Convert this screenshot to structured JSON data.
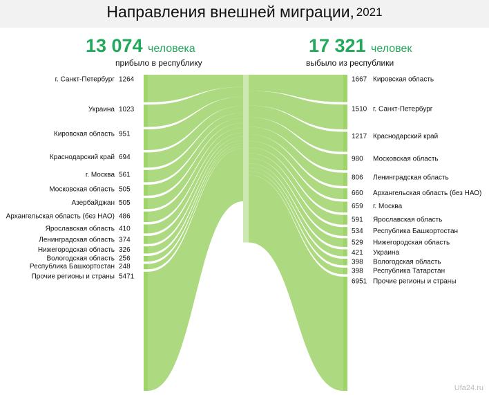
{
  "chart_data": {
    "type": "sankey",
    "title": "Направления внешней миграции,",
    "year": "2021",
    "color": "#9fd46b",
    "center_color": "#cde8b0",
    "accent_color": "#22a85a",
    "watermark": "Ufa24.ru",
    "inflow": {
      "total": 13074,
      "total_label": "13 074",
      "unit": "человека",
      "caption": "прибыло в республику",
      "categories": [
        "г. Санкт-Петербург",
        "Украина",
        "Кировская область",
        "Краснодарский край",
        "г. Москва",
        "Московская область",
        "Азербайджан",
        "Архангельская область (без НАО)",
        "Ярославская область",
        "Ленинградская область",
        "Нижегородская область",
        "Вологодская область",
        "Республика Башкортостан",
        "Прочие регионы и страны"
      ],
      "values": [
        1264,
        1023,
        951,
        694,
        561,
        505,
        505,
        486,
        410,
        374,
        326,
        256,
        248,
        5471
      ]
    },
    "outflow": {
      "total": 17321,
      "total_label": "17 321",
      "unit": "человек",
      "caption": "выбыло из республики",
      "categories": [
        "Кировская область",
        "г. Санкт-Петербург",
        "Краснодарский край",
        "Московская область",
        "Ленинградская область",
        "Архангельская область (без НАО)",
        "г. Москва",
        "Ярославская область",
        "Республика Башкортостан",
        "Нижегородская область",
        "Украина",
        "Вологодская область",
        "Республика Татарстан",
        "Прочие регионы и страны"
      ],
      "values": [
        1667,
        1510,
        1217,
        980,
        806,
        660,
        659,
        591,
        534,
        529,
        421,
        398,
        398,
        6951
      ]
    }
  }
}
